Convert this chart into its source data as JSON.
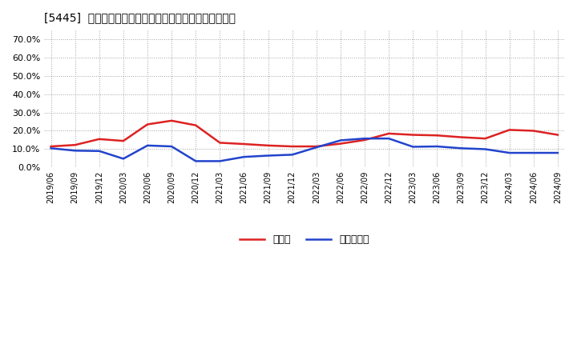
{
  "title": "[5445]  現預金、有利子負債の総資産に対する比率の推移",
  "x_labels": [
    "2019/06",
    "2019/09",
    "2019/12",
    "2020/03",
    "2020/06",
    "2020/09",
    "2020/12",
    "2021/03",
    "2021/06",
    "2021/09",
    "2021/12",
    "2022/03",
    "2022/06",
    "2022/09",
    "2022/12",
    "2023/03",
    "2023/06",
    "2023/09",
    "2023/12",
    "2024/03",
    "2024/06",
    "2024/09"
  ],
  "cash_ratio": [
    0.115,
    0.123,
    0.155,
    0.145,
    0.235,
    0.255,
    0.23,
    0.135,
    0.128,
    0.12,
    0.115,
    0.115,
    0.13,
    0.15,
    0.185,
    0.178,
    0.175,
    0.165,
    0.158,
    0.205,
    0.2,
    0.178
  ],
  "debt_ratio": [
    0.105,
    0.092,
    0.09,
    0.048,
    0.12,
    0.115,
    0.035,
    0.035,
    0.058,
    0.065,
    0.07,
    0.11,
    0.148,
    0.158,
    0.158,
    0.113,
    0.115,
    0.105,
    0.1,
    0.08,
    0.08,
    0.08
  ],
  "cash_color": "#dd2222",
  "debt_color": "#2244cc",
  "legend_cash": "現預金",
  "legend_debt": "有利子負債",
  "bg_color": "#ffffff",
  "plot_bg_color": "#ffffff",
  "grid_color": "#999999",
  "ylim": [
    0.0,
    0.75
  ],
  "yticks": [
    0.0,
    0.1,
    0.2,
    0.3,
    0.4,
    0.5,
    0.6,
    0.7
  ],
  "ytick_labels": [
    "0.0%",
    "10.0%",
    "20.0%",
    "30.0%",
    "40.0%",
    "50.0%",
    "60.0%",
    "70.0%"
  ]
}
